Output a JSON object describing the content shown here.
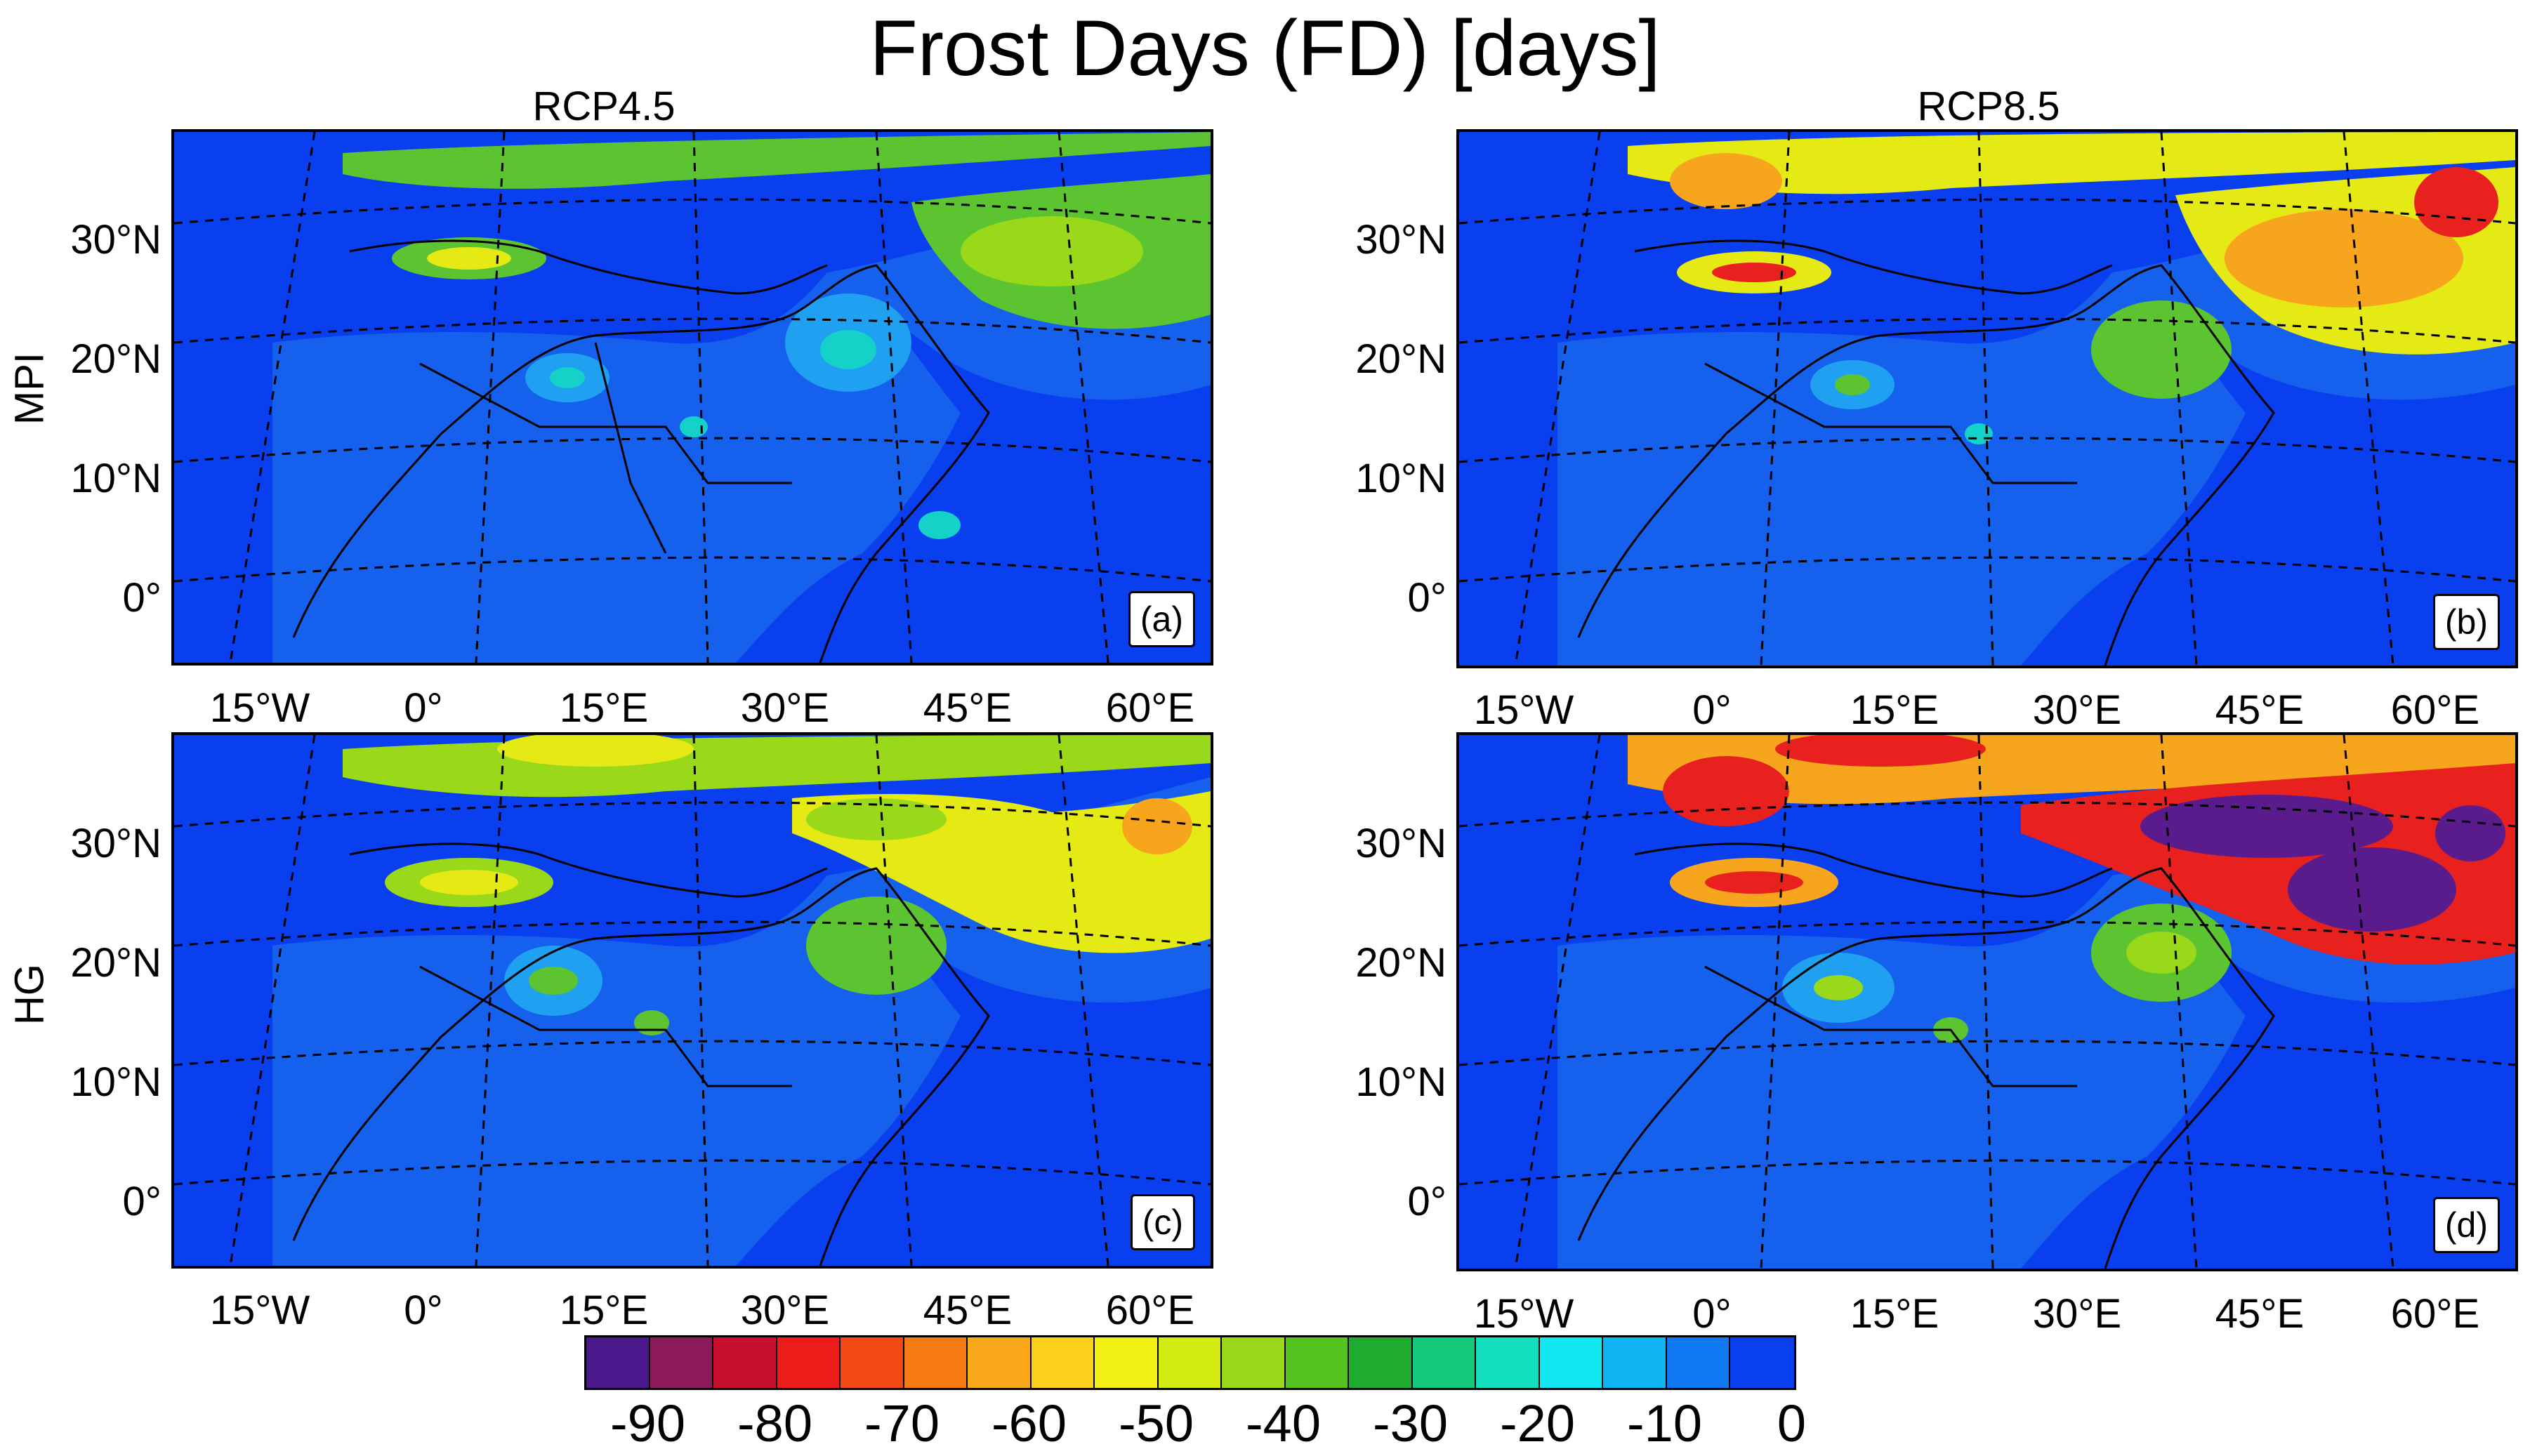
{
  "title": "Frost Days (FD) [days]",
  "columns": [
    "RCP4.5",
    "RCP8.5"
  ],
  "rows": [
    "MPI",
    "HG"
  ],
  "panels": [
    {
      "label": "(a)"
    },
    {
      "label": "(b)"
    },
    {
      "label": "(c)"
    },
    {
      "label": "(d)"
    }
  ],
  "lat_ticks": [
    "30°N",
    "20°N",
    "10°N",
    "0°"
  ],
  "lon_ticks": [
    "15°W",
    "0°",
    "15°E",
    "30°E",
    "45°E",
    "60°E"
  ],
  "colorbar": {
    "labels": [
      "-90",
      "-80",
      "-70",
      "-60",
      "-50",
      "-40",
      "-30",
      "-20",
      "-10",
      "0"
    ],
    "colors": [
      "#4a1a8c",
      "#8c1a5a",
      "#c8102e",
      "#ee1b1b",
      "#f24a12",
      "#f57a12",
      "#f9a81a",
      "#fcd01a",
      "#f2ef12",
      "#d2ec14",
      "#9ad81a",
      "#54c422",
      "#1fac2e",
      "#16c87a",
      "#14e0c0",
      "#12e6f0",
      "#10b4f2",
      "#1078f2",
      "#0a3ff0"
    ]
  },
  "map_colors": {
    "ocean": "#0a3ff0",
    "land_base": "#1660ee",
    "green": "#5cc430",
    "yellow": "#e6ea14",
    "orange": "#f7a51c",
    "red": "#e8201e",
    "purple": "#5a1c8c",
    "cyan": "#14d2c8",
    "lightblue": "#1fa0f0"
  }
}
